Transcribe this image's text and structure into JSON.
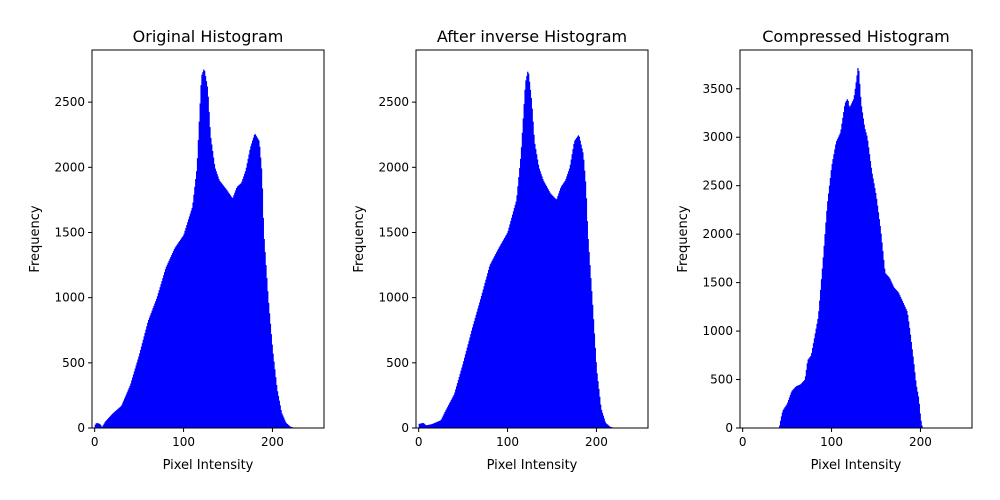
{
  "chart_data": [
    {
      "type": "bar",
      "title": "Original Histogram",
      "xlabel": "Pixel Intensity",
      "ylabel": "Frequency",
      "xlim": [
        -3,
        258
      ],
      "ylim": [
        0,
        2900
      ],
      "xticks": [
        0,
        100,
        200
      ],
      "yticks": [
        0,
        500,
        1000,
        1500,
        2000,
        2500
      ],
      "color": "#0000ff",
      "grid": false,
      "profile": [
        [
          0,
          20
        ],
        [
          2,
          40
        ],
        [
          6,
          30
        ],
        [
          8,
          5
        ],
        [
          12,
          50
        ],
        [
          20,
          110
        ],
        [
          30,
          170
        ],
        [
          40,
          330
        ],
        [
          50,
          560
        ],
        [
          60,
          820
        ],
        [
          70,
          1000
        ],
        [
          80,
          1230
        ],
        [
          90,
          1380
        ],
        [
          100,
          1480
        ],
        [
          110,
          1700
        ],
        [
          115,
          2000
        ],
        [
          120,
          2700
        ],
        [
          123,
          2760
        ],
        [
          127,
          2600
        ],
        [
          130,
          2250
        ],
        [
          135,
          2000
        ],
        [
          140,
          1900
        ],
        [
          148,
          1830
        ],
        [
          155,
          1760
        ],
        [
          160,
          1850
        ],
        [
          165,
          1880
        ],
        [
          170,
          1980
        ],
        [
          175,
          2150
        ],
        [
          180,
          2260
        ],
        [
          185,
          2200
        ],
        [
          188,
          1950
        ],
        [
          190,
          1500
        ],
        [
          195,
          1000
        ],
        [
          200,
          600
        ],
        [
          205,
          300
        ],
        [
          210,
          120
        ],
        [
          215,
          40
        ],
        [
          220,
          10
        ],
        [
          225,
          0
        ]
      ]
    },
    {
      "type": "bar",
      "title": "After inverse Histogram",
      "xlabel": "Pixel Intensity",
      "ylabel": "Frequency",
      "xlim": [
        -3,
        258
      ],
      "ylim": [
        0,
        2900
      ],
      "xticks": [
        0,
        100,
        200
      ],
      "yticks": [
        0,
        500,
        1000,
        1500,
        2000,
        2500
      ],
      "color": "#0000ff",
      "grid": false,
      "profile": [
        [
          0,
          30
        ],
        [
          5,
          40
        ],
        [
          8,
          20
        ],
        [
          15,
          30
        ],
        [
          25,
          60
        ],
        [
          30,
          130
        ],
        [
          40,
          260
        ],
        [
          50,
          500
        ],
        [
          60,
          760
        ],
        [
          70,
          1000
        ],
        [
          80,
          1250
        ],
        [
          90,
          1380
        ],
        [
          100,
          1500
        ],
        [
          110,
          1750
        ],
        [
          115,
          2100
        ],
        [
          120,
          2650
        ],
        [
          123,
          2750
        ],
        [
          127,
          2500
        ],
        [
          130,
          2200
        ],
        [
          135,
          2000
        ],
        [
          140,
          1900
        ],
        [
          148,
          1800
        ],
        [
          155,
          1750
        ],
        [
          160,
          1850
        ],
        [
          165,
          1900
        ],
        [
          170,
          2000
        ],
        [
          175,
          2200
        ],
        [
          180,
          2250
        ],
        [
          185,
          2100
        ],
        [
          188,
          1850
        ],
        [
          190,
          1500
        ],
        [
          195,
          1000
        ],
        [
          200,
          450
        ],
        [
          205,
          150
        ],
        [
          210,
          40
        ],
        [
          215,
          10
        ],
        [
          220,
          0
        ]
      ]
    },
    {
      "type": "bar",
      "title": "Compressed Histogram",
      "xlabel": "Pixel Intensity",
      "ylabel": "Frequency",
      "xlim": [
        -3,
        258
      ],
      "ylim": [
        0,
        3900
      ],
      "xticks": [
        0,
        100,
        200
      ],
      "yticks": [
        0,
        500,
        1000,
        1500,
        2000,
        2500,
        3000,
        3500
      ],
      "color": "#0000ff",
      "grid": false,
      "profile": [
        [
          41,
          0
        ],
        [
          43,
          100
        ],
        [
          45,
          180
        ],
        [
          50,
          250
        ],
        [
          55,
          380
        ],
        [
          60,
          430
        ],
        [
          65,
          450
        ],
        [
          70,
          500
        ],
        [
          73,
          700
        ],
        [
          77,
          750
        ],
        [
          80,
          900
        ],
        [
          85,
          1150
        ],
        [
          90,
          1700
        ],
        [
          95,
          2300
        ],
        [
          100,
          2700
        ],
        [
          105,
          2950
        ],
        [
          110,
          3050
        ],
        [
          115,
          3350
        ],
        [
          118,
          3400
        ],
        [
          120,
          3300
        ],
        [
          125,
          3400
        ],
        [
          128,
          3600
        ],
        [
          130,
          3750
        ],
        [
          133,
          3350
        ],
        [
          137,
          3100
        ],
        [
          140,
          3000
        ],
        [
          145,
          2650
        ],
        [
          150,
          2400
        ],
        [
          155,
          2050
        ],
        [
          160,
          1600
        ],
        [
          165,
          1550
        ],
        [
          170,
          1450
        ],
        [
          175,
          1400
        ],
        [
          180,
          1300
        ],
        [
          185,
          1200
        ],
        [
          188,
          1000
        ],
        [
          192,
          700
        ],
        [
          195,
          450
        ],
        [
          198,
          300
        ],
        [
          200,
          100
        ],
        [
          202,
          0
        ]
      ]
    }
  ]
}
